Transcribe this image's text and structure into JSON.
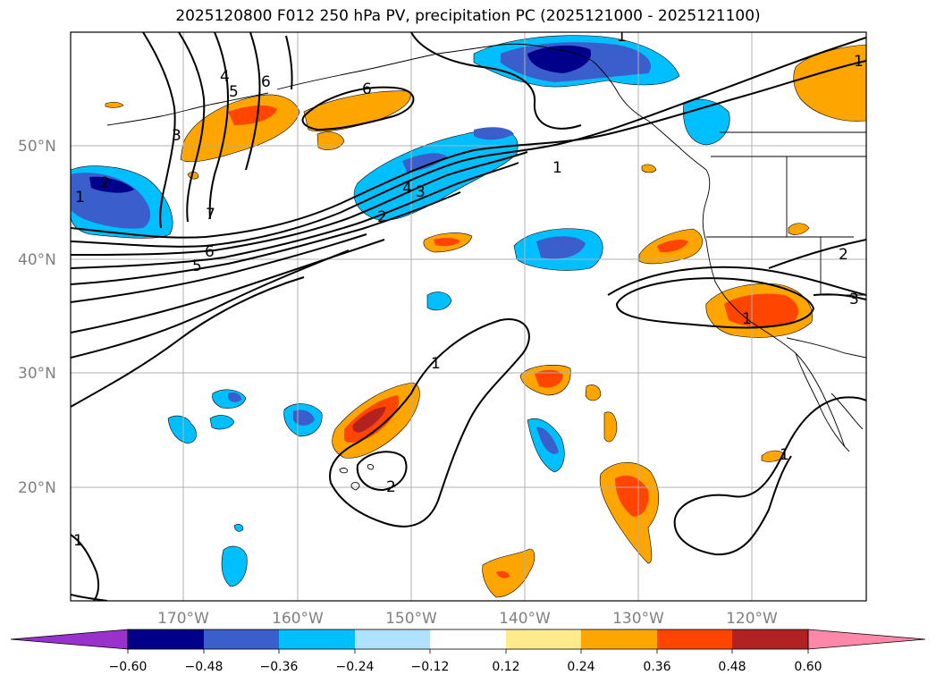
{
  "title": "2025120800 F012 250 hPa PV, precipitation PC (2025121000 - 2025121100)",
  "colors": {
    "deep_navy": "#00008b",
    "royal_blue": "#3a5fcd",
    "deep_sky": "#00bfff",
    "light_sky": "#b0e2ff",
    "white": "#ffffff",
    "light_yellow": "#ffeb8c",
    "orange": "#ffa500",
    "orange_red": "#ff4500",
    "firebrick": "#b22222",
    "pink": "#ff88aa",
    "purple": "#9932cc",
    "grid": "#b0b0b0",
    "coast": "#000000"
  },
  "lat_labels": [
    "50°N",
    "40°N",
    "30°N",
    "20°N"
  ],
  "lon_labels": [
    "170°W",
    "160°W",
    "150°W",
    "140°W",
    "130°W",
    "120°W"
  ],
  "contour_labels": [
    "1",
    "2",
    "2",
    "3",
    "4",
    "5",
    "6",
    "6",
    "7",
    "1",
    "1",
    "2",
    "4",
    "3",
    "5",
    "6",
    "1",
    "2",
    "1",
    "1",
    "2",
    "3",
    "1",
    "1"
  ],
  "colorbar": {
    "ticks": [
      "−0.60",
      "−0.48",
      "−0.36",
      "−0.24",
      "−0.12",
      "0.12",
      "0.24",
      "0.36",
      "0.48",
      "0.60"
    ]
  }
}
